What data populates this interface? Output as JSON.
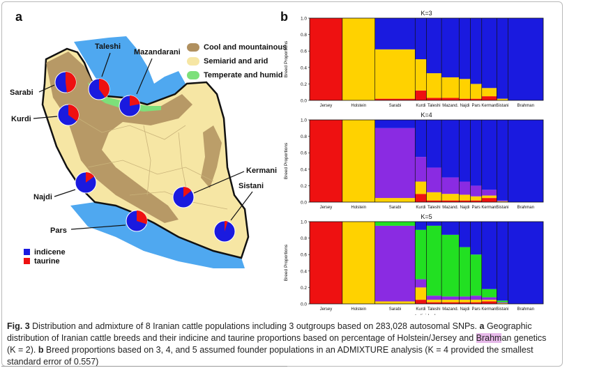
{
  "panel_a": {
    "label": "a",
    "climate_legend": [
      {
        "label": "Cool and mountainous",
        "color": "#b0905f"
      },
      {
        "label": "Semiarid and arid",
        "color": "#f6e6a4"
      },
      {
        "label": "Temperate and humid",
        "color": "#7de07a"
      }
    ],
    "ancestry_legend": [
      {
        "label": "indicene",
        "color": "#1a1adf"
      },
      {
        "label": "taurine",
        "color": "#ee1111"
      }
    ],
    "populations": [
      {
        "name": "Taleshi",
        "taurine": 0.4
      },
      {
        "name": "Mazandarani",
        "taurine": 0.22
      },
      {
        "name": "Sarabi",
        "taurine": 0.48
      },
      {
        "name": "Kurdi",
        "taurine": 0.35
      },
      {
        "name": "Najdi",
        "taurine": 0.15
      },
      {
        "name": "Pars",
        "taurine": 0.3
      },
      {
        "name": "Kermani",
        "taurine": 0.14
      },
      {
        "name": "Sistani",
        "taurine": 0.05
      }
    ]
  },
  "panel_b": {
    "label": "b",
    "ylabel": "Breed Proportions",
    "xlabel": "Individuals"
  },
  "chart_data": [
    {
      "type": "bar",
      "title": "K=3",
      "ylabel": "Breed Proportions",
      "ylim": [
        0,
        1
      ],
      "yticks": [
        "0.0",
        "0.2",
        "0.4",
        "0.6",
        "0.8",
        "1.0"
      ],
      "categories": [
        "Jersey",
        "Holstein",
        "Sarabi",
        "Kurdi",
        "Taleshi",
        "Mazand.",
        "Najdi",
        "Pars",
        "Kermani",
        "Sistani",
        "Brahman"
      ],
      "series": [
        {
          "color": "#ee1111",
          "values": [
            1.0,
            0.0,
            0.02,
            0.12,
            0.03,
            0.03,
            0.02,
            0.02,
            0.05,
            0.0,
            0.0
          ]
        },
        {
          "color": "#ffd200",
          "values": [
            0.0,
            1.0,
            0.6,
            0.38,
            0.3,
            0.25,
            0.24,
            0.18,
            0.1,
            0.02,
            0.0
          ]
        },
        {
          "color": "#1a1adf",
          "values": [
            0.0,
            0.0,
            0.38,
            0.5,
            0.67,
            0.72,
            0.74,
            0.8,
            0.85,
            0.98,
            1.0
          ]
        }
      ]
    },
    {
      "type": "bar",
      "title": "K=4",
      "ylabel": "Breed Proportions",
      "ylim": [
        0,
        1
      ],
      "yticks": [
        "0.0",
        "0.2",
        "0.4",
        "0.6",
        "0.8",
        "1.0"
      ],
      "categories": [
        "Jersey",
        "Holstein",
        "Sarabi",
        "Kurdi",
        "Taleshi",
        "Mazand.",
        "Najdi",
        "Pars",
        "Kermani",
        "Sistani",
        "Brahman"
      ],
      "series": [
        {
          "color": "#ee1111",
          "values": [
            1.0,
            0.0,
            0.0,
            0.1,
            0.02,
            0.02,
            0.02,
            0.02,
            0.05,
            0.0,
            0.0
          ]
        },
        {
          "color": "#ffd200",
          "values": [
            0.0,
            1.0,
            0.05,
            0.15,
            0.1,
            0.08,
            0.07,
            0.05,
            0.03,
            0.01,
            0.0
          ]
        },
        {
          "color": "#8a2be2",
          "values": [
            0.0,
            0.0,
            0.85,
            0.3,
            0.3,
            0.2,
            0.16,
            0.13,
            0.07,
            0.01,
            0.0
          ]
        },
        {
          "color": "#1a1adf",
          "values": [
            0.0,
            0.0,
            0.1,
            0.45,
            0.58,
            0.7,
            0.75,
            0.8,
            0.85,
            0.98,
            1.0
          ]
        }
      ]
    },
    {
      "type": "bar",
      "title": "K=5",
      "ylabel": "Breed Proportions",
      "xlabel": "Individuals",
      "ylim": [
        0,
        1
      ],
      "yticks": [
        "0.0",
        "0.2",
        "0.4",
        "0.6",
        "0.8",
        "1.0"
      ],
      "categories": [
        "Jersey",
        "Holstein",
        "Sarabi",
        "Kurdi",
        "Taleshi",
        "Mazand.",
        "Najdi",
        "Pars",
        "Kermani",
        "Sistani",
        "Brahman"
      ],
      "series": [
        {
          "color": "#ee1111",
          "values": [
            1.0,
            0.0,
            0.0,
            0.05,
            0.02,
            0.02,
            0.02,
            0.02,
            0.03,
            0.0,
            0.0
          ]
        },
        {
          "color": "#ffd200",
          "values": [
            0.0,
            1.0,
            0.03,
            0.15,
            0.03,
            0.03,
            0.03,
            0.03,
            0.02,
            0.01,
            0.0
          ]
        },
        {
          "color": "#8a2be2",
          "values": [
            0.0,
            0.0,
            0.92,
            0.1,
            0.05,
            0.04,
            0.04,
            0.05,
            0.03,
            0.01,
            0.0
          ]
        },
        {
          "color": "#22e022",
          "values": [
            0.0,
            0.0,
            0.05,
            0.6,
            0.85,
            0.75,
            0.6,
            0.5,
            0.1,
            0.02,
            0.0
          ]
        },
        {
          "color": "#1a1adf",
          "values": [
            0.0,
            0.0,
            0.0,
            0.1,
            0.05,
            0.16,
            0.31,
            0.4,
            0.82,
            0.96,
            1.0
          ]
        }
      ]
    }
  ],
  "caption": {
    "fig_label": "Fig. 3",
    "text_1": " Distribution and admixture of 8 Iranian cattle populations including 3 outgroups based on 283,028 autosomal SNPs. ",
    "a_label": "a",
    "text_2": " Geographic distribution of Iranian cattle breeds and their indicine and taurine proportions based on percentage of Holstein/Jersey and ",
    "highlight": "Brahm",
    "text_3": "an genetics (K = 2). ",
    "b_label": "b",
    "text_4": " Breed proportions based on 3, 4, and 5 assumed founder populations in an ADMIXTURE analysis (K = 4 provided the smallest standard error of 0.557)"
  }
}
